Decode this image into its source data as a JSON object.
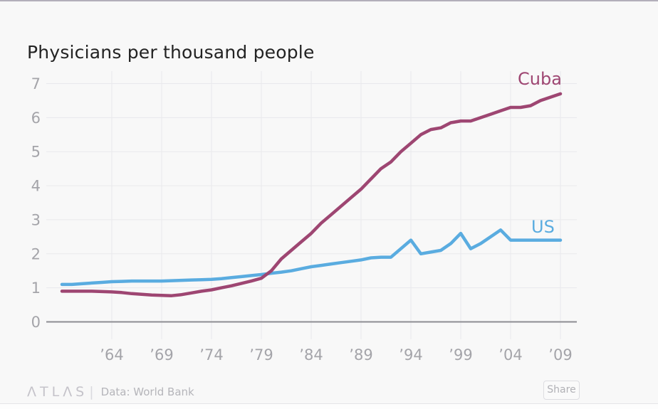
{
  "page": {
    "title": "Physicians per thousand people",
    "footer": {
      "logo": "ΛTLΛS",
      "separator": "|",
      "source": "Data: World Bank",
      "share_label": "Share"
    }
  },
  "chart_data": {
    "type": "line",
    "title": "Physicians per thousand people",
    "xlabel": "",
    "ylabel": "",
    "xlim": [
      1959,
      2009
    ],
    "ylim": [
      0,
      7
    ],
    "grid": true,
    "legend": "end-of-line-labels",
    "y_ticks": [
      0,
      1,
      2,
      3,
      4,
      5,
      6,
      7
    ],
    "x_ticks": [
      {
        "year": 1964,
        "label": "’64"
      },
      {
        "year": 1969,
        "label": "’69"
      },
      {
        "year": 1974,
        "label": "’74"
      },
      {
        "year": 1979,
        "label": "’79"
      },
      {
        "year": 1984,
        "label": "’84"
      },
      {
        "year": 1989,
        "label": "’89"
      },
      {
        "year": 1994,
        "label": "’94"
      },
      {
        "year": 1999,
        "label": "’99"
      },
      {
        "year": 2004,
        "label": "’04"
      },
      {
        "year": 2009,
        "label": "’09"
      }
    ],
    "x": [
      1959,
      1960,
      1961,
      1962,
      1963,
      1964,
      1965,
      1966,
      1967,
      1968,
      1969,
      1970,
      1971,
      1972,
      1973,
      1974,
      1975,
      1976,
      1977,
      1978,
      1979,
      1980,
      1981,
      1982,
      1983,
      1984,
      1985,
      1986,
      1987,
      1988,
      1989,
      1990,
      1991,
      1992,
      1993,
      1994,
      1995,
      1996,
      1997,
      1998,
      1999,
      2000,
      2001,
      2002,
      2003,
      2004,
      2005,
      2006,
      2007,
      2008,
      2009
    ],
    "series": [
      {
        "name": "Cuba",
        "color": "#9e4672",
        "values": [
          0.9,
          0.9,
          0.9,
          0.9,
          0.89,
          0.88,
          0.86,
          0.83,
          0.81,
          0.79,
          0.78,
          0.77,
          0.8,
          0.85,
          0.9,
          0.94,
          1.0,
          1.06,
          1.13,
          1.2,
          1.28,
          1.5,
          1.85,
          2.1,
          2.35,
          2.6,
          2.9,
          3.15,
          3.4,
          3.65,
          3.9,
          4.2,
          4.5,
          4.7,
          5.0,
          5.25,
          5.5,
          5.65,
          5.7,
          5.85,
          5.9,
          5.9,
          6.0,
          6.1,
          6.2,
          6.3,
          6.3,
          6.35,
          6.5,
          6.6,
          6.7
        ]
      },
      {
        "name": "US",
        "color": "#5aace0",
        "values": [
          1.1,
          1.1,
          1.12,
          1.14,
          1.16,
          1.18,
          1.19,
          1.2,
          1.2,
          1.2,
          1.2,
          1.21,
          1.22,
          1.23,
          1.24,
          1.25,
          1.27,
          1.3,
          1.33,
          1.36,
          1.39,
          1.43,
          1.46,
          1.5,
          1.56,
          1.62,
          1.66,
          1.7,
          1.74,
          1.78,
          1.82,
          1.88,
          1.9,
          1.9,
          2.15,
          2.4,
          2.0,
          2.05,
          2.1,
          2.3,
          2.6,
          2.15,
          2.3,
          2.5,
          2.7,
          2.4,
          2.4,
          2.4,
          2.4,
          2.4,
          2.4
        ]
      }
    ]
  }
}
